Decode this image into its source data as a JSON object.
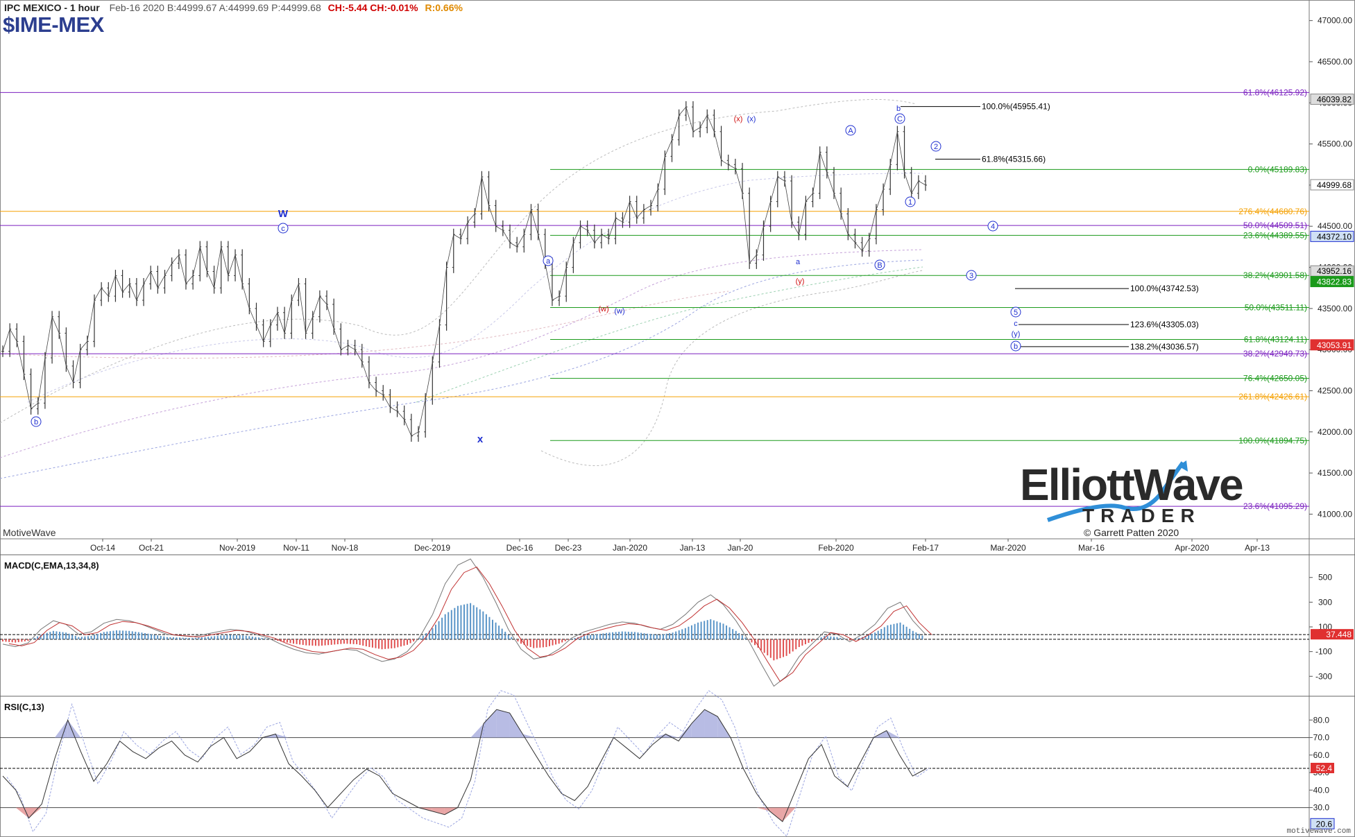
{
  "header": {
    "title": "IPC MEXICO - 1 hour",
    "quote": "Feb-16 2020  B:44999.67  A:44999.69  P:44999.68",
    "change": "CH:-5.44  CH:-0.01%",
    "range": "R:0.66%",
    "symbol": "$IME-MEX"
  },
  "brand_left": "MotiveWave",
  "watermark": "motivewave.com",
  "logo": {
    "line1": "ElliottWave",
    "line2": "TRADER",
    "copyright": "© Garrett Patten 2020"
  },
  "colors": {
    "green_fib": "#1a9a1a",
    "purple_fib": "#7a1fbf",
    "orange_fib": "#f5a000",
    "wave_blue": "#1f2fd0",
    "wave_red": "#d01010",
    "macd_pos": "#5a95c8",
    "macd_neg": "#e05050"
  },
  "x_ticks": [
    "Oct-14",
    "Oct-21",
    "Nov-2019",
    "Nov-11",
    "Nov-18",
    "Dec-2019",
    "Dec-16",
    "Dec-23",
    "Jan-2020",
    "Jan-13",
    "Jan-20",
    "Feb-2020",
    "Feb-17",
    "Mar-2020",
    "Mar-16",
    "Apr-2020",
    "Apr-13"
  ],
  "chart_data": [
    {
      "type": "line",
      "title": "IPC MEXICO - 1 hour",
      "y_axis": {
        "ticks": [
          "47000.00",
          "46500.00",
          "46000.00",
          "45500.00",
          "45000.00",
          "44500.00",
          "44000.00",
          "43500.00",
          "43000.00",
          "42500.00",
          "42000.00",
          "41500.00",
          "41000.00"
        ],
        "ylim": [
          40700,
          47250
        ]
      },
      "series": [
        {
          "values": [
            42980,
            43250,
            43100,
            42700,
            42280,
            42350,
            42900,
            43400,
            43200,
            42800,
            42600,
            43000,
            43100,
            43600,
            43750,
            43650,
            43900,
            43700,
            43800,
            43600,
            43800,
            43950,
            43750,
            43900,
            44050,
            44150,
            43800,
            43900,
            44250,
            43950,
            43750,
            44250,
            43900,
            44150,
            43800,
            43500,
            43300,
            43100,
            43300,
            43450,
            43200,
            43600,
            43800,
            43200,
            43400,
            43650,
            43550,
            43250,
            43000,
            43050,
            43000,
            42850,
            42600,
            42500,
            42450,
            42300,
            42250,
            42150,
            41950,
            42000,
            42400,
            42850,
            43300,
            44000,
            44400,
            44350,
            44550,
            44650,
            45100,
            44750,
            44500,
            44450,
            44300,
            44250,
            44400,
            44700,
            44400,
            44050,
            43600,
            43650,
            44000,
            44300,
            44500,
            44450,
            44300,
            44400,
            44350,
            44600,
            44550,
            44800,
            44600,
            44700,
            44750,
            44950,
            45350,
            45550,
            45850,
            45950,
            45650,
            45700,
            45850,
            45650,
            45300,
            45250,
            45200,
            44900,
            44050,
            44150,
            44500,
            44800,
            45100,
            45050,
            44550,
            44400,
            44800,
            44900,
            45400,
            45150,
            44900,
            44650,
            44400,
            44300,
            44200,
            44350,
            44700,
            44950,
            45250,
            45650,
            45150,
            44900,
            45050,
            45000
          ]
        },
        {
          "name": "fib levels",
          "values": [
            46125.92,
            45955.41,
            45315.66,
            45189.83,
            44680.76,
            44509.51,
            44389.55,
            43901.58,
            43742.53,
            43511.11,
            43305.03,
            43124.11,
            43036.57,
            42949.73,
            42650.05,
            42426.61,
            41894.75,
            41095.29
          ]
        }
      ],
      "price_labels": [
        "46039.82",
        "44999.68",
        "44372.10",
        "43952.16",
        "43822.83",
        "43053.91"
      ],
      "fib_labels": [
        {
          "text": "61.8%(46125.92)",
          "color": "#7a1fbf"
        },
        {
          "text": "0.0%(45189.83)",
          "color": "#1a9a1a"
        },
        {
          "text": "276.4%(44680.76)",
          "color": "#f5a000"
        },
        {
          "text": "50.0%(44509.51)",
          "color": "#7a1fbf"
        },
        {
          "text": "23.6%(44389.55)",
          "color": "#1a9a1a"
        },
        {
          "text": "38.2%(43901.58)",
          "color": "#1a9a1a"
        },
        {
          "text": "50.0%(43511.11)",
          "color": "#1a9a1a"
        },
        {
          "text": "61.8%(43124.11)",
          "color": "#1a9a1a"
        },
        {
          "text": "38.2%(42949.73)",
          "color": "#7a1fbf"
        },
        {
          "text": "76.4%(42650.05)",
          "color": "#1a9a1a"
        },
        {
          "text": "261.8%(42426.61)",
          "color": "#f5a000"
        },
        {
          "text": "100.0%(41894.75)",
          "color": "#1a9a1a"
        },
        {
          "text": "23.6%(41095.29)",
          "color": "#7a1fbf"
        }
      ],
      "projection_labels": [
        "100.0%(45955.41)",
        "61.8%(45315.66)",
        "100.0%(43742.53)",
        "123.6%(43305.03)",
        "138.2%(43036.57)"
      ],
      "wave_labels": [
        "b",
        "W",
        "c",
        "a",
        "x",
        "(w)",
        "(w)",
        "(x)",
        "(x)",
        "A",
        "b",
        "C",
        "2",
        "1",
        "a",
        "(y)",
        "B",
        "4",
        "3",
        "5",
        "c",
        "(y)",
        "b"
      ]
    },
    {
      "type": "bar",
      "title": "MACD(C,EMA,13,34,8)",
      "y_axis": {
        "ticks": [
          "500",
          "300",
          "100",
          "-100",
          "-300"
        ],
        "ylim": [
          -450,
          650
        ]
      },
      "last_value": "37.448",
      "series": [
        {
          "name": "MACD",
          "values": [
            -40,
            -60,
            -30,
            80,
            150,
            120,
            40,
            60,
            130,
            160,
            150,
            120,
            80,
            40,
            30,
            20,
            40,
            60,
            80,
            70,
            40,
            10,
            -40,
            -80,
            -110,
            -120,
            -100,
            -80,
            -90,
            -140,
            -180,
            -160,
            -100,
            20,
            200,
            450,
            600,
            650,
            500,
            300,
            80,
            -80,
            -160,
            -140,
            -80,
            10,
            60,
            90,
            120,
            140,
            130,
            100,
            80,
            120,
            200,
            300,
            360,
            280,
            150,
            -10,
            -200,
            -380,
            -300,
            -140,
            -40,
            60,
            40,
            -20,
            40,
            120,
            250,
            300,
            150,
            40
          ]
        }
      ]
    },
    {
      "type": "line",
      "title": "RSI(C,13)",
      "y_axis": {
        "ticks": [
          "80.0",
          "70.0",
          "60.0",
          "50.0",
          "40.0",
          "30.0"
        ],
        "ylim": [
          14,
          92
        ]
      },
      "last_value": "52.4",
      "low_value": "20.6",
      "series": [
        {
          "name": "RSI",
          "values": [
            48,
            40,
            24,
            32,
            58,
            80,
            62,
            45,
            55,
            68,
            62,
            58,
            64,
            68,
            60,
            56,
            65,
            70,
            58,
            62,
            70,
            72,
            55,
            48,
            40,
            30,
            38,
            46,
            52,
            48,
            38,
            34,
            30,
            28,
            26,
            30,
            46,
            78,
            86,
            84,
            72,
            60,
            48,
            38,
            34,
            42,
            56,
            70,
            64,
            58,
            66,
            72,
            68,
            78,
            86,
            82,
            70,
            52,
            38,
            28,
            22,
            40,
            58,
            66,
            48,
            42,
            56,
            70,
            74,
            60,
            48,
            52
          ]
        }
      ]
    }
  ]
}
